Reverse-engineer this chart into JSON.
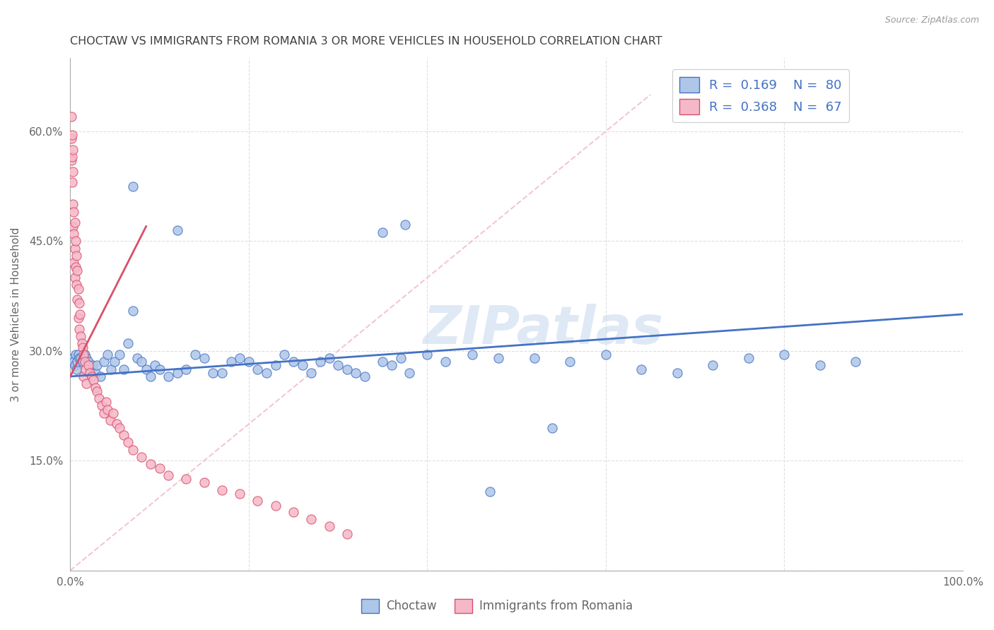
{
  "title": "CHOCTAW VS IMMIGRANTS FROM ROMANIA 3 OR MORE VEHICLES IN HOUSEHOLD CORRELATION CHART",
  "source": "Source: ZipAtlas.com",
  "ylabel": "3 or more Vehicles in Household",
  "xlim": [
    0,
    1.0
  ],
  "ylim": [
    0,
    0.7
  ],
  "xtick_positions": [
    0.0,
    0.2,
    0.4,
    0.6,
    0.8,
    1.0
  ],
  "xticklabels": [
    "0.0%",
    "",
    "",
    "",
    "",
    "100.0%"
  ],
  "ytick_positions": [
    0.0,
    0.15,
    0.3,
    0.45,
    0.6
  ],
  "yticklabels": [
    "",
    "15.0%",
    "30.0%",
    "45.0%",
    "60.0%"
  ],
  "watermark": "ZIPatlas",
  "legend_label1": "Choctaw",
  "legend_label2": "Immigrants from Romania",
  "r1": "0.169",
  "n1": "80",
  "r2": "0.368",
  "n2": "67",
  "color1": "#aec6e8",
  "color2": "#f5b8c8",
  "line_color1": "#4472c4",
  "line_color2": "#d94f6b",
  "title_color": "#404040",
  "legend_r_color": "#4472c4",
  "axis_color": "#aaaaaa",
  "background_color": "#ffffff",
  "grid_color": "#e0e0e0",
  "diag_color": "#f0b8c8",
  "choctaw_x": [
    0.003,
    0.004,
    0.005,
    0.006,
    0.007,
    0.008,
    0.009,
    0.01,
    0.012,
    0.014,
    0.016,
    0.018,
    0.02,
    0.022,
    0.025,
    0.028,
    0.03,
    0.034,
    0.038,
    0.042,
    0.046,
    0.05,
    0.055,
    0.06,
    0.065,
    0.07,
    0.075,
    0.08,
    0.085,
    0.09,
    0.095,
    0.1,
    0.11,
    0.12,
    0.13,
    0.14,
    0.15,
    0.16,
    0.17,
    0.18,
    0.19,
    0.2,
    0.21,
    0.22,
    0.23,
    0.24,
    0.25,
    0.26,
    0.27,
    0.28,
    0.29,
    0.3,
    0.31,
    0.32,
    0.33,
    0.35,
    0.36,
    0.37,
    0.38,
    0.4,
    0.42,
    0.45,
    0.48,
    0.52,
    0.56,
    0.6,
    0.64,
    0.68,
    0.72,
    0.76,
    0.8,
    0.84,
    0.88,
    0.07,
    0.12,
    0.35,
    0.375,
    0.47,
    0.54,
    0.86
  ],
  "choctaw_y": [
    0.29,
    0.285,
    0.28,
    0.295,
    0.275,
    0.285,
    0.295,
    0.29,
    0.29,
    0.285,
    0.295,
    0.29,
    0.285,
    0.275,
    0.28,
    0.27,
    0.28,
    0.265,
    0.285,
    0.295,
    0.275,
    0.285,
    0.295,
    0.275,
    0.31,
    0.355,
    0.29,
    0.285,
    0.275,
    0.265,
    0.28,
    0.275,
    0.265,
    0.27,
    0.275,
    0.295,
    0.29,
    0.27,
    0.27,
    0.285,
    0.29,
    0.285,
    0.275,
    0.27,
    0.28,
    0.295,
    0.285,
    0.28,
    0.27,
    0.285,
    0.29,
    0.28,
    0.275,
    0.27,
    0.265,
    0.285,
    0.28,
    0.29,
    0.27,
    0.295,
    0.285,
    0.295,
    0.29,
    0.29,
    0.285,
    0.295,
    0.275,
    0.27,
    0.28,
    0.29,
    0.295,
    0.28,
    0.285,
    0.525,
    0.465,
    0.462,
    0.472,
    0.108,
    0.195,
    0.62
  ],
  "romania_x": [
    0.001,
    0.001,
    0.001,
    0.002,
    0.002,
    0.002,
    0.003,
    0.003,
    0.003,
    0.003,
    0.004,
    0.004,
    0.004,
    0.005,
    0.005,
    0.005,
    0.006,
    0.006,
    0.007,
    0.007,
    0.008,
    0.008,
    0.009,
    0.009,
    0.01,
    0.01,
    0.011,
    0.012,
    0.013,
    0.014,
    0.015,
    0.015,
    0.016,
    0.017,
    0.018,
    0.02,
    0.022,
    0.024,
    0.026,
    0.028,
    0.03,
    0.032,
    0.035,
    0.038,
    0.04,
    0.042,
    0.045,
    0.048,
    0.052,
    0.055,
    0.06,
    0.065,
    0.07,
    0.08,
    0.09,
    0.1,
    0.11,
    0.13,
    0.15,
    0.17,
    0.19,
    0.21,
    0.23,
    0.25,
    0.27,
    0.29,
    0.31
  ],
  "romania_y": [
    0.62,
    0.59,
    0.56,
    0.595,
    0.565,
    0.53,
    0.575,
    0.545,
    0.5,
    0.47,
    0.49,
    0.46,
    0.42,
    0.475,
    0.44,
    0.4,
    0.45,
    0.415,
    0.43,
    0.39,
    0.41,
    0.37,
    0.385,
    0.345,
    0.365,
    0.33,
    0.35,
    0.32,
    0.31,
    0.305,
    0.295,
    0.265,
    0.285,
    0.275,
    0.255,
    0.28,
    0.27,
    0.265,
    0.26,
    0.25,
    0.245,
    0.235,
    0.225,
    0.215,
    0.23,
    0.22,
    0.205,
    0.215,
    0.2,
    0.195,
    0.185,
    0.175,
    0.165,
    0.155,
    0.145,
    0.14,
    0.13,
    0.125,
    0.12,
    0.11,
    0.105,
    0.095,
    0.088,
    0.08,
    0.07,
    0.06,
    0.05
  ],
  "choctaw_trend": [
    0.0,
    1.0,
    0.265,
    0.35
  ],
  "romania_trend_x": [
    0.0,
    0.085
  ],
  "romania_trend_y": [
    0.265,
    0.47
  ]
}
